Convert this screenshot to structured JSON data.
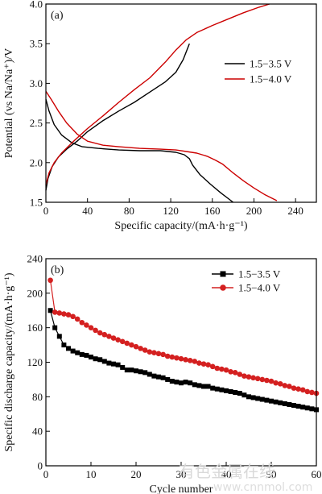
{
  "chart_data": [
    {
      "panel_label": "(a)",
      "type": "line",
      "xlabel": "Specific capacity/(mA·h·g⁻¹)",
      "ylabel": "Potential (vs Na/Na⁺)/V",
      "xlim": [
        0,
        260
      ],
      "ylim": [
        1.5,
        4.0
      ],
      "xticks": [
        0,
        40,
        80,
        120,
        160,
        200,
        240
      ],
      "yticks": [
        1.5,
        2.0,
        2.5,
        3.0,
        3.5,
        4.0
      ],
      "legend_position": "right",
      "series": [
        {
          "name": "1.5−3.5 V",
          "color": "#000000",
          "segments": [
            [
              [
                0,
                1.65
              ],
              [
                2,
                1.8
              ],
              [
                6,
                1.95
              ],
              [
                12,
                2.07
              ],
              [
                20,
                2.17
              ],
              [
                30,
                2.27
              ],
              [
                40,
                2.39
              ],
              [
                55,
                2.53
              ],
              [
                70,
                2.65
              ],
              [
                85,
                2.76
              ],
              [
                100,
                2.89
              ],
              [
                115,
                3.02
              ],
              [
                125,
                3.14
              ],
              [
                132,
                3.3
              ],
              [
                138,
                3.5
              ]
            ],
            [
              [
                0,
                2.8
              ],
              [
                3,
                2.65
              ],
              [
                8,
                2.48
              ],
              [
                15,
                2.35
              ],
              [
                25,
                2.25
              ],
              [
                35,
                2.2
              ],
              [
                50,
                2.18
              ],
              [
                70,
                2.16
              ],
              [
                90,
                2.15
              ],
              [
                110,
                2.15
              ],
              [
                125,
                2.13
              ],
              [
                133,
                2.1
              ],
              [
                138,
                2.05
              ],
              [
                141,
                1.97
              ],
              [
                148,
                1.85
              ],
              [
                158,
                1.73
              ],
              [
                168,
                1.62
              ],
              [
                180,
                1.5
              ]
            ]
          ]
        },
        {
          "name": "1.5−4.0 V",
          "color": "#cc0000",
          "segments": [
            [
              [
                0,
                1.72
              ],
              [
                3,
                1.87
              ],
              [
                8,
                2.0
              ],
              [
                15,
                2.12
              ],
              [
                25,
                2.25
              ],
              [
                40,
                2.43
              ],
              [
                55,
                2.59
              ],
              [
                70,
                2.76
              ],
              [
                85,
                2.92
              ],
              [
                100,
                3.07
              ],
              [
                115,
                3.27
              ],
              [
                125,
                3.42
              ],
              [
                135,
                3.55
              ],
              [
                145,
                3.64
              ],
              [
                160,
                3.73
              ],
              [
                175,
                3.81
              ],
              [
                190,
                3.89
              ],
              [
                205,
                3.96
              ],
              [
                215,
                4.0
              ]
            ],
            [
              [
                0,
                2.9
              ],
              [
                5,
                2.8
              ],
              [
                12,
                2.65
              ],
              [
                20,
                2.5
              ],
              [
                30,
                2.36
              ],
              [
                40,
                2.27
              ],
              [
                55,
                2.22
              ],
              [
                70,
                2.2
              ],
              [
                90,
                2.18
              ],
              [
                110,
                2.17
              ],
              [
                125,
                2.16
              ],
              [
                135,
                2.14
              ],
              [
                145,
                2.12
              ],
              [
                155,
                2.08
              ],
              [
                163,
                2.03
              ],
              [
                170,
                1.98
              ],
              [
                180,
                1.87
              ],
              [
                190,
                1.77
              ],
              [
                200,
                1.68
              ],
              [
                210,
                1.6
              ],
              [
                222,
                1.52
              ]
            ]
          ]
        }
      ]
    },
    {
      "panel_label": "(b)",
      "type": "line",
      "xlabel": "Cycle number",
      "ylabel": "Specific discharge capacity/(mA·h·g⁻¹)",
      "xlim": [
        0,
        60
      ],
      "ylim": [
        0,
        240
      ],
      "xticks": [
        0,
        10,
        20,
        30,
        40,
        50,
        60
      ],
      "yticks": [
        0,
        40,
        80,
        120,
        160,
        200,
        240
      ],
      "legend_position": "top-right",
      "x": [
        1,
        2,
        3,
        4,
        5,
        6,
        7,
        8,
        9,
        10,
        11,
        12,
        13,
        14,
        15,
        16,
        17,
        18,
        19,
        20,
        21,
        22,
        23,
        24,
        25,
        26,
        27,
        28,
        29,
        30,
        31,
        32,
        33,
        34,
        35,
        36,
        37,
        38,
        39,
        40,
        41,
        42,
        43,
        44,
        45,
        46,
        47,
        48,
        49,
        50,
        51,
        52,
        53,
        54,
        55,
        56,
        57,
        58,
        59,
        60
      ],
      "series": [
        {
          "name": "1.5−3.5 V",
          "color": "#000000",
          "marker": "square",
          "values": [
            180,
            160,
            150,
            140,
            136,
            133,
            131,
            129,
            128,
            126,
            124,
            123,
            121,
            119,
            118,
            117,
            114,
            111,
            111,
            110,
            109,
            108,
            106,
            104,
            103,
            102,
            100,
            98,
            97,
            96,
            97,
            96,
            94,
            93,
            92,
            92,
            90,
            89,
            88,
            87,
            86,
            85,
            84,
            82,
            80,
            79,
            78,
            77,
            76,
            75,
            74,
            73,
            72,
            71,
            70,
            69,
            68,
            67,
            66,
            65
          ]
        },
        {
          "name": "1.5−4.0 V",
          "color": "#d42020",
          "marker": "circle",
          "values": [
            215,
            178,
            177,
            176,
            175,
            173,
            170,
            166,
            163,
            160,
            157,
            154,
            152,
            150,
            148,
            146,
            144,
            142,
            140,
            138,
            136,
            134,
            132,
            131,
            130,
            129,
            127,
            126,
            125,
            124,
            123,
            122,
            121,
            119,
            118,
            117,
            115,
            113,
            112,
            111,
            109,
            108,
            106,
            104,
            103,
            102,
            101,
            100,
            99,
            98,
            96,
            95,
            93,
            92,
            90,
            89,
            88,
            86,
            85,
            84
          ]
        }
      ]
    }
  ],
  "watermark": {
    "text": "有色金属在线",
    "url": "www.cnnmol.com"
  }
}
